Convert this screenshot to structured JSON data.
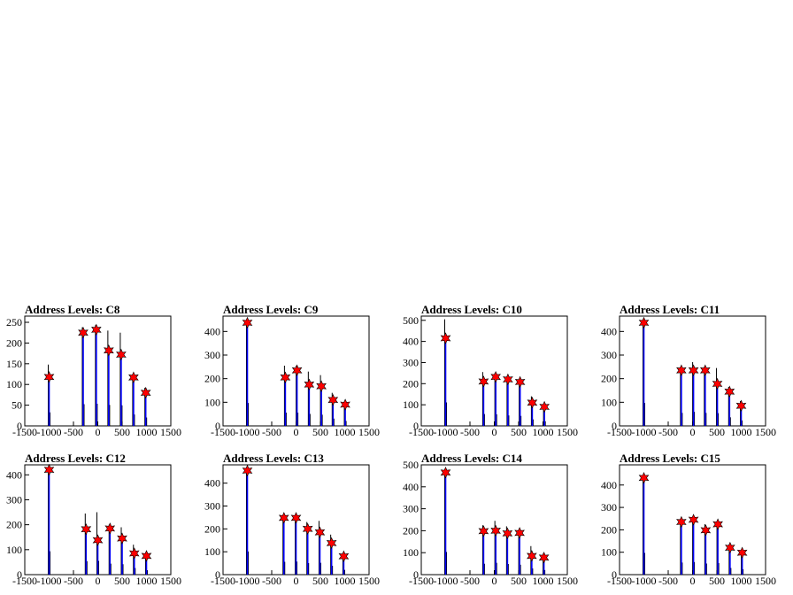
{
  "chart_data": [
    {
      "type": "bar",
      "title": "Address Levels: C8",
      "xlim": [
        -1500,
        1500
      ],
      "ylim": [
        0,
        265
      ],
      "yticks": [
        0,
        50,
        100,
        150,
        200,
        250
      ],
      "xticks": [
        "-1500",
        "-1000",
        "-500",
        "0",
        "500",
        "1000",
        "1500"
      ],
      "peaks": [
        {
          "x": -1000,
          "y": 148,
          "marker": 118
        },
        {
          "x": -300,
          "y": 238,
          "marker": 225
        },
        {
          "x": -30,
          "y": 243,
          "marker": 232
        },
        {
          "x": 225,
          "y": 230,
          "marker": 182
        },
        {
          "x": 480,
          "y": 225,
          "marker": 172
        },
        {
          "x": 735,
          "y": 125,
          "marker": 117
        },
        {
          "x": 985,
          "y": 92,
          "marker": 80
        }
      ]
    },
    {
      "type": "bar",
      "title": "Address Levels: C9",
      "xlim": [
        -1500,
        1500
      ],
      "ylim": [
        0,
        465
      ],
      "yticks": [
        0,
        100,
        200,
        300,
        400
      ],
      "xticks": [
        "-1500",
        "-1000",
        "-500",
        "0",
        "500",
        "1000",
        "1500"
      ],
      "peaks": [
        {
          "x": -1000,
          "y": 440,
          "marker": 437
        },
        {
          "x": -220,
          "y": 255,
          "marker": 205
        },
        {
          "x": 20,
          "y": 255,
          "marker": 235
        },
        {
          "x": 270,
          "y": 230,
          "marker": 175
        },
        {
          "x": 520,
          "y": 215,
          "marker": 168
        },
        {
          "x": 760,
          "y": 140,
          "marker": 110
        },
        {
          "x": 1010,
          "y": 95,
          "marker": 90
        }
      ]
    },
    {
      "type": "bar",
      "title": "Address Levels: C10",
      "xlim": [
        -1500,
        1500
      ],
      "ylim": [
        0,
        520
      ],
      "yticks": [
        0,
        100,
        200,
        300,
        400,
        500
      ],
      "xticks": [
        "-1500",
        "-1000",
        "-500",
        "0",
        "500",
        "1000",
        "1500"
      ],
      "peaks": [
        {
          "x": -1000,
          "y": 505,
          "marker": 415
        },
        {
          "x": -220,
          "y": 255,
          "marker": 210
        },
        {
          "x": 30,
          "y": 250,
          "marker": 232
        },
        {
          "x": 280,
          "y": 225,
          "marker": 220
        },
        {
          "x": 530,
          "y": 215,
          "marker": 208
        },
        {
          "x": 780,
          "y": 140,
          "marker": 110
        },
        {
          "x": 1030,
          "y": 100,
          "marker": 90
        }
      ]
    },
    {
      "type": "bar",
      "title": "Address Levels: C11",
      "xlim": [
        -1500,
        1500
      ],
      "ylim": [
        0,
        465
      ],
      "yticks": [
        0,
        100,
        200,
        300,
        400
      ],
      "xticks": [
        "-1500",
        "-1000",
        "-500",
        "0",
        "500",
        "1000",
        "1500"
      ],
      "peaks": [
        {
          "x": -1000,
          "y": 440,
          "marker": 437
        },
        {
          "x": -230,
          "y": 250,
          "marker": 235
        },
        {
          "x": 20,
          "y": 270,
          "marker": 235
        },
        {
          "x": 260,
          "y": 250,
          "marker": 235
        },
        {
          "x": 510,
          "y": 245,
          "marker": 178
        },
        {
          "x": 760,
          "y": 165,
          "marker": 145
        },
        {
          "x": 1000,
          "y": 105,
          "marker": 85
        }
      ]
    },
    {
      "type": "bar",
      "title": "Address Levels: C12",
      "xlim": [
        -1500,
        1500
      ],
      "ylim": [
        0,
        440
      ],
      "yticks": [
        0,
        100,
        200,
        300,
        400
      ],
      "xticks": [
        "-1500",
        "-1000",
        "-500",
        "0",
        "500",
        "1000",
        "1500"
      ],
      "peaks": [
        {
          "x": -1000,
          "y": 425,
          "marker": 420
        },
        {
          "x": -240,
          "y": 245,
          "marker": 182
        },
        {
          "x": 0,
          "y": 250,
          "marker": 138
        },
        {
          "x": 250,
          "y": 200,
          "marker": 185
        },
        {
          "x": 500,
          "y": 190,
          "marker": 145
        },
        {
          "x": 750,
          "y": 120,
          "marker": 85
        },
        {
          "x": 1000,
          "y": 80,
          "marker": 75
        }
      ]
    },
    {
      "type": "bar",
      "title": "Address Levels: C13",
      "xlim": [
        -1500,
        1500
      ],
      "ylim": [
        0,
        480
      ],
      "yticks": [
        0,
        100,
        200,
        300,
        400
      ],
      "xticks": [
        "-1500",
        "-1000",
        "-500",
        "0",
        "500",
        "1000",
        "1500"
      ],
      "peaks": [
        {
          "x": -1000,
          "y": 460,
          "marker": 455
        },
        {
          "x": -250,
          "y": 255,
          "marker": 248
        },
        {
          "x": 0,
          "y": 260,
          "marker": 248
        },
        {
          "x": 240,
          "y": 230,
          "marker": 200
        },
        {
          "x": 490,
          "y": 235,
          "marker": 185
        },
        {
          "x": 730,
          "y": 175,
          "marker": 138
        },
        {
          "x": 980,
          "y": 95,
          "marker": 80
        }
      ]
    },
    {
      "type": "bar",
      "title": "Address Levels: C14",
      "xlim": [
        -1500,
        1500
      ],
      "ylim": [
        0,
        500
      ],
      "yticks": [
        0,
        100,
        200,
        300,
        400,
        500
      ],
      "xticks": [
        "-1500",
        "-1000",
        "-500",
        "0",
        "500",
        "1000",
        "1500"
      ],
      "peaks": [
        {
          "x": -1000,
          "y": 470,
          "marker": 465
        },
        {
          "x": -220,
          "y": 225,
          "marker": 198
        },
        {
          "x": 30,
          "y": 245,
          "marker": 200
        },
        {
          "x": 270,
          "y": 220,
          "marker": 188
        },
        {
          "x": 520,
          "y": 205,
          "marker": 190
        },
        {
          "x": 770,
          "y": 130,
          "marker": 85
        },
        {
          "x": 1020,
          "y": 95,
          "marker": 78
        }
      ]
    },
    {
      "type": "bar",
      "title": "Address Levels: C15",
      "xlim": [
        -1500,
        1500
      ],
      "ylim": [
        0,
        490
      ],
      "yticks": [
        0,
        100,
        200,
        300,
        400
      ],
      "xticks": [
        "-1500",
        "-1000",
        "-500",
        "0",
        "500",
        "1000",
        "1500"
      ],
      "peaks": [
        {
          "x": -1000,
          "y": 440,
          "marker": 432
        },
        {
          "x": -230,
          "y": 245,
          "marker": 235
        },
        {
          "x": 20,
          "y": 255,
          "marker": 245
        },
        {
          "x": 270,
          "y": 225,
          "marker": 198
        },
        {
          "x": 520,
          "y": 235,
          "marker": 225
        },
        {
          "x": 770,
          "y": 135,
          "marker": 120
        },
        {
          "x": 1020,
          "y": 110,
          "marker": 98
        }
      ]
    }
  ]
}
